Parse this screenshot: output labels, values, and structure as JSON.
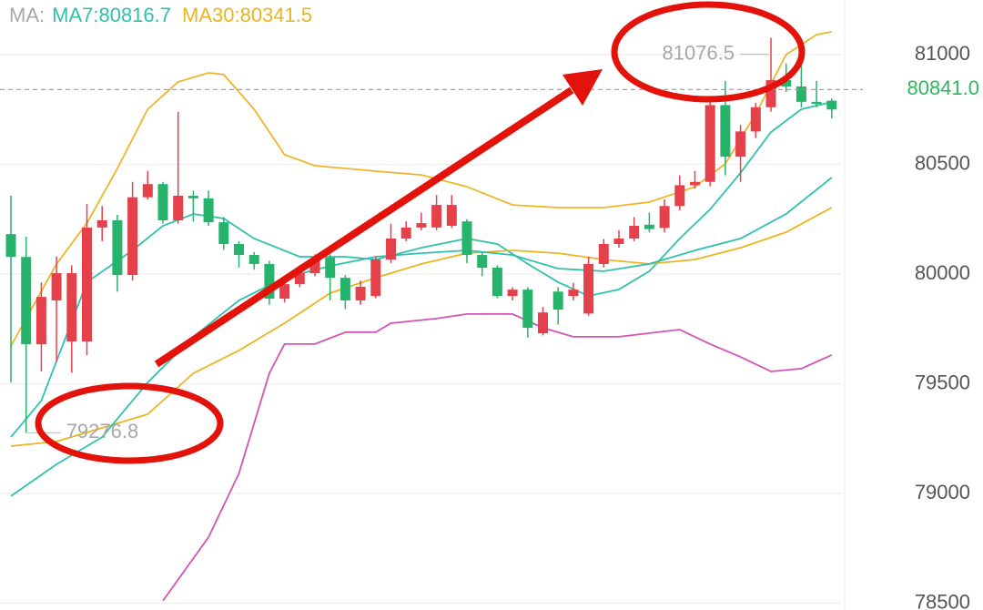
{
  "chart_data": {
    "type": "candlestick",
    "legend_title": "MA:",
    "up_color": "#e5414b",
    "down_color": "#26b36b",
    "open": [
      80182,
      80078,
      79680,
      79880,
      79693,
      79693,
      80212,
      80245,
      79996,
      80350,
      80410,
      80245,
      80357,
      80345,
      80236,
      80137,
      80087,
      80046,
      79888,
      79954,
      80004,
      80075,
      79983,
      79880,
      79900,
      80066,
      80162,
      80212,
      80212,
      80220,
      80240,
      80087,
      80029,
      79900,
      79929,
      79730,
      79920,
      79900,
      79820,
      80046,
      80137,
      80162,
      80225,
      80210,
      80310,
      80405,
      80420,
      80770,
      80535,
      80650,
      80760,
      80884,
      80855,
      80785,
      80790
    ],
    "high": [
      80357,
      80170,
      79962,
      80080,
      80040,
      80320,
      80310,
      80270,
      80420,
      80470,
      80420,
      80740,
      80380,
      80380,
      80260,
      80150,
      80100,
      80060,
      79990,
      80040,
      80090,
      80090,
      79995,
      79970,
      80080,
      80230,
      80240,
      80280,
      80360,
      80360,
      80250,
      80100,
      80040,
      79940,
      79940,
      79850,
      79940,
      79960,
      80080,
      80160,
      80200,
      80260,
      80280,
      80340,
      80450,
      80470,
      80790,
      80880,
      80680,
      80780,
      81076.5,
      80960,
      80970,
      80880,
      80800
    ],
    "low": [
      79506,
      79276.8,
      79556,
      79600,
      79550,
      79630,
      80150,
      79920,
      79970,
      80340,
      80230,
      80230,
      80240,
      80220,
      80110,
      80030,
      80020,
      79860,
      79870,
      79940,
      79990,
      79880,
      79840,
      79860,
      79890,
      80050,
      80150,
      80200,
      80200,
      80210,
      80050,
      79990,
      79890,
      79880,
      79710,
      79720,
      79770,
      79880,
      79810,
      80030,
      80120,
      80150,
      80190,
      80190,
      80290,
      80390,
      80400,
      80450,
      80420,
      80620,
      80740,
      80830,
      80760,
      80760,
      80710
    ],
    "close": [
      80078,
      79680,
      79896,
      80004,
      80004,
      80212,
      80245,
      79996,
      80350,
      80410,
      80245,
      80357,
      80345,
      80236,
      80137,
      80087,
      80046,
      79888,
      79954,
      80004,
      80066,
      79983,
      79880,
      79942,
      80066,
      80162,
      80212,
      80232,
      80315,
      80315,
      80087,
      80029,
      79900,
      79929,
      79755,
      79825,
      79838,
      79929,
      80046,
      80137,
      80162,
      80220,
      80205,
      80310,
      80405,
      80420,
      80770,
      80535,
      80650,
      80760,
      80884,
      80855,
      80785,
      80775,
      80750
    ],
    "lines": [
      {
        "name": "MA7:80816.7",
        "color": "#2fc1ae",
        "x": [
          0,
          2,
          5,
          8,
          10,
          12,
          14,
          16,
          19,
          22,
          24,
          27,
          30,
          32,
          34,
          36,
          38,
          40,
          42,
          44,
          46,
          48,
          50,
          52,
          54
        ],
        "values": [
          79257,
          79423,
          79963,
          80108,
          80220,
          80274,
          80253,
          80162,
          80079,
          80079,
          80066,
          80120,
          80162,
          80137,
          80046,
          79963,
          79900,
          79930,
          80013,
          80162,
          80295,
          80461,
          80647,
          80751,
          80784
        ]
      },
      {
        "name": "MA30:80341.5",
        "color": "#e9b521",
        "x": [
          0,
          3,
          6,
          9,
          12,
          15,
          18,
          21,
          24,
          27,
          30,
          33,
          36,
          39,
          42,
          45,
          48,
          51,
          54
        ],
        "values": [
          79216,
          79237,
          79299,
          79361,
          79548,
          79652,
          79776,
          79913,
          79983,
          80046,
          80095,
          80108,
          80095,
          80066,
          80046,
          80066,
          80120,
          80191,
          80303
        ]
      },
      {
        "color": "#2fc1ae",
        "x": [
          0,
          3,
          6,
          9,
          12,
          15,
          18,
          21,
          24,
          27,
          30,
          33,
          36,
          39,
          42,
          45,
          48,
          51,
          54
        ],
        "values": [
          78988,
          79133,
          79257,
          79506,
          79714,
          79880,
          79983,
          80037,
          80079,
          80095,
          80108,
          80087,
          80025,
          80013,
          80046,
          80108,
          80162,
          80274,
          80440
        ]
      },
      {
        "color": "#efb52a",
        "x": [
          0,
          3,
          5,
          7,
          9,
          11,
          13,
          14,
          16,
          18,
          20,
          24,
          27,
          30,
          33,
          36,
          39,
          42,
          45,
          47,
          49,
          51,
          53,
          54
        ],
        "values": [
          79672,
          80046,
          80232,
          80481,
          80751,
          80876,
          80917,
          80909,
          80751,
          80544,
          80494,
          80469,
          80452,
          80398,
          80315,
          80303,
          80303,
          80328,
          80398,
          80502,
          80730,
          81000,
          81091,
          81104
        ]
      },
      {
        "color": "#d453b4",
        "x": [
          10,
          13,
          15,
          17,
          18,
          20,
          22,
          24,
          25,
          28,
          30,
          33,
          35,
          37,
          40,
          44,
          46,
          48,
          50,
          52,
          54
        ],
        "values": [
          78511,
          78801,
          79091,
          79548,
          79681,
          79681,
          79735,
          79735,
          79776,
          79797,
          79818,
          79818,
          79755,
          79714,
          79714,
          79747,
          79681,
          79622,
          79556,
          79569,
          79631
        ]
      }
    ],
    "high_marker": 81076.5,
    "low_marker": 79276.8,
    "last_price": {
      "value": 80841,
      "label": "80841.0"
    },
    "ylim": [
      78469,
      81249
    ],
    "yticks": [
      78500,
      79000,
      79500,
      80000,
      80500,
      81000
    ],
    "grid": true
  }
}
